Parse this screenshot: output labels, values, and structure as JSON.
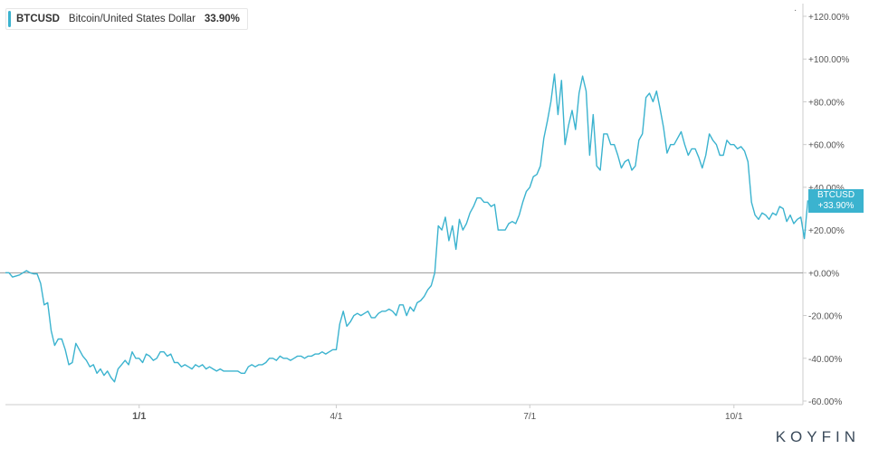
{
  "legend": {
    "symbol": "BTCUSD",
    "name": "Bitcoin/United States Dollar",
    "value": "33.90%"
  },
  "badge": {
    "symbol": "BTCUSD",
    "value": "+33.90%"
  },
  "brand": "KOYFIN",
  "colors": {
    "line": "#3bb3cf",
    "axis": "#cccccc",
    "zero_line": "#999999",
    "text": "#555555"
  },
  "chart_data": {
    "type": "line",
    "y_unit": "%",
    "ylim": [
      -60,
      120
    ],
    "y_ticks": [
      -60,
      -40,
      -20,
      0,
      20,
      40,
      60,
      80,
      100,
      120
    ],
    "y_tick_labels": [
      "-60.00%",
      "-40.00%",
      "-20.00%",
      "+0.00%",
      "+20.00%",
      "+40.00%",
      "+60.00%",
      "+80.00%",
      "+100.00%",
      "+120.00%"
    ],
    "xlim": [
      0,
      223
    ],
    "x_ticks": [
      38,
      94,
      149,
      207
    ],
    "x_tick_labels": [
      "1/1",
      "4/1",
      "7/1",
      "10/1"
    ],
    "grid": false,
    "series": [
      {
        "values": [
          0,
          0,
          -2,
          -1.5,
          -1,
          0,
          1,
          0,
          -0.5,
          -0.5,
          -5,
          -15,
          -14,
          -27,
          -34,
          -31,
          -31,
          -36,
          -43,
          -42,
          -33,
          -36,
          -39,
          -41,
          -44,
          -43,
          -47,
          -45,
          -48,
          -46,
          -49,
          -51,
          -45,
          -43,
          -41,
          -43,
          -37,
          -40,
          -40,
          -42,
          -38,
          -39,
          -41,
          -40,
          -37,
          -37,
          -39,
          -38,
          -42,
          -42,
          -44,
          -43,
          -44,
          -45,
          -43,
          -44,
          -43,
          -45,
          -44,
          -45,
          -46,
          -45,
          -46,
          -46,
          -46,
          -46,
          -46,
          -47,
          -47,
          -44,
          -43,
          -44,
          -43,
          -43,
          -42,
          -40,
          -40,
          -41,
          -39,
          -40,
          -40,
          -41,
          -40,
          -39,
          -39,
          -40,
          -39,
          -39,
          -38,
          -38,
          -37,
          -38,
          -37,
          -36,
          -36,
          -24,
          -18,
          -25,
          -23,
          -20,
          -19,
          -20,
          -19,
          -18,
          -21,
          -21,
          -19,
          -18,
          -18,
          -17,
          -18,
          -20,
          -15,
          -15,
          -20,
          -16,
          -18,
          -14,
          -13,
          -11,
          -8,
          -6,
          0,
          22,
          20,
          26,
          15,
          22,
          11,
          25,
          20,
          23,
          28,
          31,
          35,
          35,
          33,
          33,
          31,
          32,
          20,
          20,
          20,
          23,
          24,
          23,
          27,
          33,
          38,
          40,
          45,
          46,
          50,
          63,
          71,
          80,
          93,
          74,
          90,
          60,
          69,
          76,
          67,
          84,
          92,
          85,
          55,
          74,
          50,
          48,
          65,
          65,
          60,
          60,
          55,
          49,
          52,
          53,
          48,
          50,
          62,
          65,
          82,
          84,
          80,
          85,
          77,
          68,
          56,
          60,
          60,
          63,
          66,
          60,
          55,
          58,
          58,
          54,
          49,
          55,
          65,
          62,
          60,
          55,
          55,
          62,
          60,
          60,
          58,
          59,
          57,
          52,
          33,
          27,
          25,
          28,
          27,
          25,
          28,
          27,
          31,
          30,
          24,
          27,
          23,
          25,
          26,
          16,
          33.9
        ]
      }
    ]
  }
}
